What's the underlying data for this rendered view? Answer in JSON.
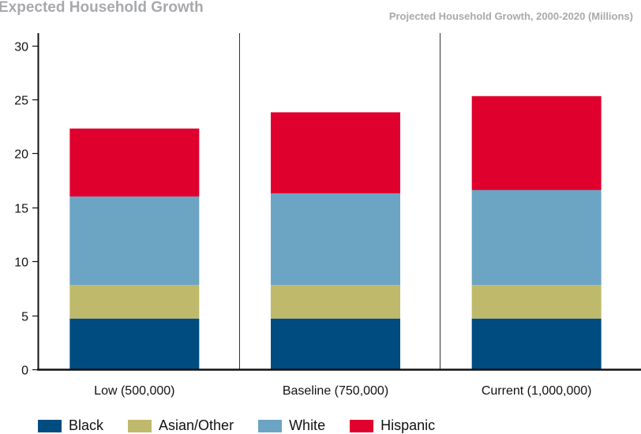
{
  "header": {
    "title": "Expected Household Growth",
    "subtitle": "Projected Household Growth, 2000-2020 (Millions)"
  },
  "chart_data": {
    "type": "bar",
    "stacked": true,
    "title": "Projected Household Growth, 2000-2020 (Millions)",
    "xlabel": "",
    "ylabel": "",
    "categories": [
      "Low (500,000)",
      "Baseline (750,000)",
      "Current (1,000,000)"
    ],
    "ylim": [
      0,
      30
    ],
    "yticks": [
      0,
      5,
      10,
      15,
      20,
      25,
      30
    ],
    "grid": "vertical lines between categories",
    "legend_position": "bottom",
    "series": [
      {
        "name": "Black",
        "color": "#004b7f",
        "values": [
          4.7,
          4.7,
          4.7
        ]
      },
      {
        "name": "Asian/Other",
        "color": "#bfb96c",
        "values": [
          3.1,
          3.1,
          3.1
        ]
      },
      {
        "name": "White",
        "color": "#6ca4c4",
        "values": [
          8.2,
          8.5,
          8.8
        ]
      },
      {
        "name": "Hispanic",
        "color": "#e0002e",
        "values": [
          6.3,
          7.5,
          8.7
        ]
      }
    ]
  }
}
